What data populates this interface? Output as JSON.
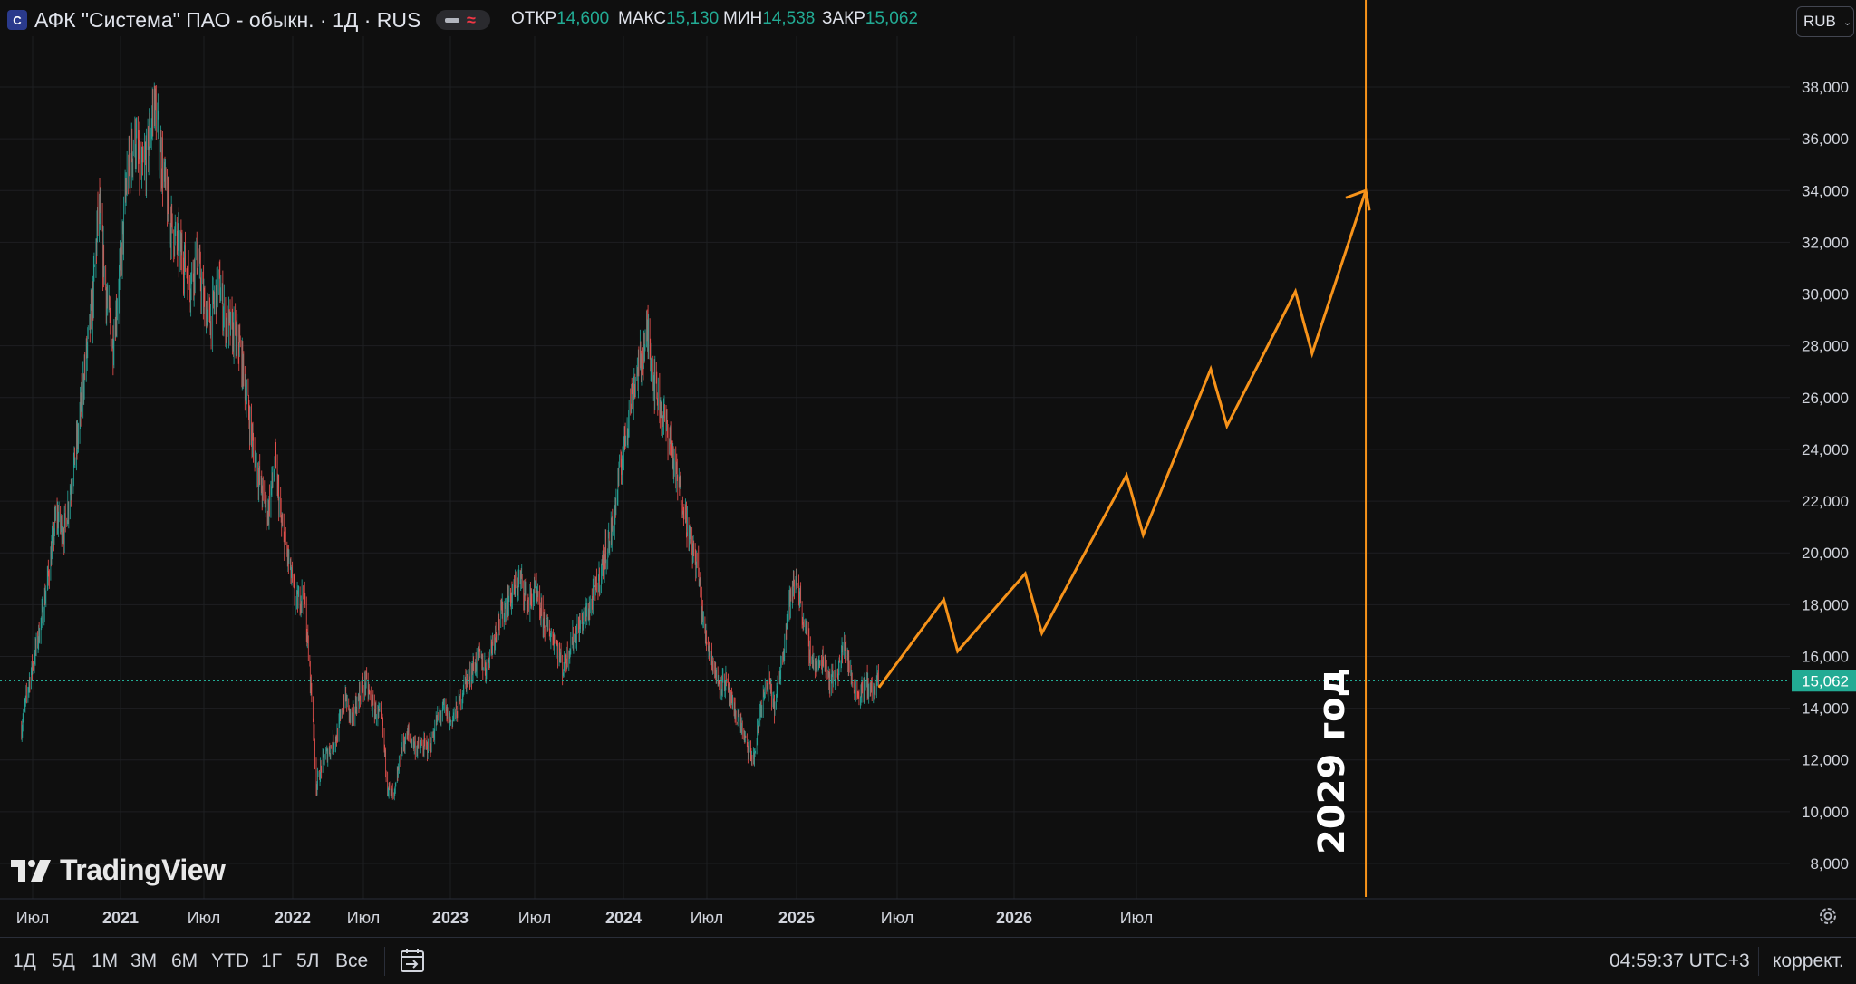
{
  "header": {
    "title": "АФК \"Система\" ПАО - обыкн. · 1Д · RUS",
    "ohlc": [
      {
        "key": "ОТКР",
        "value": "14,600"
      },
      {
        "key": "МАКС",
        "value": "15,130"
      },
      {
        "key": "МИН",
        "value": "14,538"
      },
      {
        "key": "ЗАКР",
        "value": "15,062"
      }
    ],
    "currency": "RUB"
  },
  "chart_data": {
    "type": "line",
    "price_axis_ticks": [
      "38,000",
      "36,000",
      "34,000",
      "32,000",
      "30,000",
      "28,000",
      "26,000",
      "24,000",
      "22,000",
      "20,000",
      "18,000",
      "16,000",
      "14,000",
      "12,000",
      "10,000",
      "8,000"
    ],
    "time_axis_labels": [
      "Июл",
      "2021",
      "Июл",
      "2022",
      "Июл",
      "2023",
      "Июл",
      "2024",
      "Июл",
      "2025",
      "Июл",
      "2026",
      "Июл"
    ],
    "ylim": [
      7000,
      41400
    ],
    "current_price": "15,062",
    "colors": {
      "up": "#26a69a",
      "down": "#ef5350",
      "projection": "#f7931a",
      "price_line": "#22ab94"
    },
    "price_history": {
      "name": "",
      "points": [
        [
          "2020-06-01",
          13.2
        ],
        [
          "2020-06-15",
          14.8
        ],
        [
          "2020-07-01",
          16.2
        ],
        [
          "2020-07-15",
          17.5
        ],
        [
          "2020-08-01",
          19.5
        ],
        [
          "2020-08-15",
          21.5
        ],
        [
          "2020-09-01",
          20.8
        ],
        [
          "2020-09-15",
          22.5
        ],
        [
          "2020-10-01",
          24.5
        ],
        [
          "2020-10-15",
          27.0
        ],
        [
          "2020-11-01",
          29.5
        ],
        [
          "2020-11-15",
          33.5
        ],
        [
          "2020-12-01",
          30.0
        ],
        [
          "2020-12-15",
          28.0
        ],
        [
          "2021-01-01",
          31.0
        ],
        [
          "2021-01-15",
          34.5
        ],
        [
          "2021-02-01",
          36.0
        ],
        [
          "2021-02-15",
          34.5
        ],
        [
          "2021-03-01",
          35.5
        ],
        [
          "2021-03-15",
          37.5
        ],
        [
          "2021-04-01",
          35.0
        ],
        [
          "2021-04-15",
          33.0
        ],
        [
          "2021-05-01",
          32.0
        ],
        [
          "2021-05-15",
          31.5
        ],
        [
          "2021-06-01",
          30.5
        ],
        [
          "2021-06-15",
          31.5
        ],
        [
          "2021-07-01",
          29.5
        ],
        [
          "2021-07-15",
          29.0
        ],
        [
          "2021-08-01",
          30.5
        ],
        [
          "2021-08-15",
          29.0
        ],
        [
          "2021-09-01",
          28.5
        ],
        [
          "2021-09-15",
          28.0
        ],
        [
          "2021-10-01",
          26.0
        ],
        [
          "2021-10-15",
          24.0
        ],
        [
          "2021-11-01",
          22.5
        ],
        [
          "2021-11-15",
          21.5
        ],
        [
          "2021-12-01",
          23.5
        ],
        [
          "2021-12-15",
          21.0
        ],
        [
          "2022-01-01",
          19.5
        ],
        [
          "2022-01-15",
          18.0
        ],
        [
          "2022-02-01",
          18.5
        ],
        [
          "2022-02-20",
          14.0
        ],
        [
          "2022-02-28",
          11.0
        ],
        [
          "2022-03-15",
          12.0
        ],
        [
          "2022-04-01",
          12.5
        ],
        [
          "2022-04-15",
          13.0
        ],
        [
          "2022-05-01",
          14.5
        ],
        [
          "2022-05-15",
          13.5
        ],
        [
          "2022-06-01",
          14.5
        ],
        [
          "2022-06-15",
          15.0
        ],
        [
          "2022-07-01",
          14.0
        ],
        [
          "2022-07-20",
          13.5
        ],
        [
          "2022-08-01",
          11.0
        ],
        [
          "2022-08-15",
          10.5
        ],
        [
          "2022-09-01",
          12.5
        ],
        [
          "2022-09-15",
          13.0
        ],
        [
          "2022-10-01",
          12.5
        ],
        [
          "2022-10-15",
          12.5
        ],
        [
          "2022-11-01",
          12.5
        ],
        [
          "2022-11-15",
          13.5
        ],
        [
          "2022-12-01",
          14.0
        ],
        [
          "2022-12-15",
          13.5
        ],
        [
          "2023-01-01",
          14.0
        ],
        [
          "2023-01-15",
          15.0
        ],
        [
          "2023-02-01",
          15.5
        ],
        [
          "2023-02-15",
          16.0
        ],
        [
          "2023-03-01",
          15.5
        ],
        [
          "2023-03-15",
          16.5
        ],
        [
          "2023-04-01",
          17.5
        ],
        [
          "2023-04-15",
          18.0
        ],
        [
          "2023-05-01",
          18.5
        ],
        [
          "2023-05-15",
          19.0
        ],
        [
          "2023-06-01",
          18.0
        ],
        [
          "2023-06-15",
          18.5
        ],
        [
          "2023-07-01",
          17.5
        ],
        [
          "2023-07-15",
          17.0
        ],
        [
          "2023-08-01",
          16.5
        ],
        [
          "2023-08-15",
          15.5
        ],
        [
          "2023-09-01",
          16.5
        ],
        [
          "2023-09-15",
          17.0
        ],
        [
          "2023-10-01",
          17.5
        ],
        [
          "2023-10-15",
          18.0
        ],
        [
          "2023-11-01",
          19.0
        ],
        [
          "2023-11-15",
          20.0
        ],
        [
          "2023-12-01",
          21.0
        ],
        [
          "2023-12-15",
          23.0
        ],
        [
          "2024-01-01",
          25.0
        ],
        [
          "2024-01-15",
          26.5
        ],
        [
          "2024-02-01",
          27.5
        ],
        [
          "2024-02-15",
          28.5
        ],
        [
          "2024-03-01",
          26.5
        ],
        [
          "2024-03-15",
          25.5
        ],
        [
          "2024-04-01",
          24.5
        ],
        [
          "2024-04-15",
          23.0
        ],
        [
          "2024-05-01",
          22.0
        ],
        [
          "2024-05-15",
          20.5
        ],
        [
          "2024-06-01",
          19.5
        ],
        [
          "2024-06-15",
          17.0
        ],
        [
          "2024-07-01",
          16.0
        ],
        [
          "2024-07-15",
          15.0
        ],
        [
          "2024-08-01",
          15.0
        ],
        [
          "2024-08-15",
          14.0
        ],
        [
          "2024-09-01",
          13.5
        ],
        [
          "2024-09-15",
          12.5
        ],
        [
          "2024-10-01",
          12.0
        ],
        [
          "2024-10-15",
          14.0
        ],
        [
          "2024-11-01",
          15.0
        ],
        [
          "2024-11-15",
          14.0
        ],
        [
          "2024-12-01",
          16.0
        ],
        [
          "2024-12-15",
          18.0
        ],
        [
          "2025-01-01",
          19.0
        ],
        [
          "2025-01-15",
          17.5
        ],
        [
          "2025-02-01",
          16.0
        ],
        [
          "2025-02-15",
          15.5
        ],
        [
          "2025-03-01",
          16.0
        ],
        [
          "2025-03-15",
          15.0
        ],
        [
          "2025-04-01",
          15.5
        ],
        [
          "2025-04-15",
          16.5
        ],
        [
          "2025-05-01",
          15.0
        ],
        [
          "2025-05-15",
          14.5
        ],
        [
          "2025-06-01",
          15.0
        ],
        [
          "2025-06-15",
          14.6
        ],
        [
          "2025-06-28",
          15.1
        ]
      ]
    },
    "projection": {
      "name": "",
      "points": [
        [
          "2025-06-28",
          14.8
        ],
        [
          "2025-11-15",
          18.2
        ],
        [
          "2025-12-15",
          16.2
        ],
        [
          "2026-05-10",
          19.2
        ],
        [
          "2026-06-15",
          16.9
        ],
        [
          "2026-12-15",
          23.0
        ],
        [
          "2027-01-20",
          20.7
        ],
        [
          "2027-06-15",
          27.1
        ],
        [
          "2027-07-20",
          24.9
        ],
        [
          "2027-12-15",
          30.1
        ],
        [
          "2028-01-20",
          27.7
        ],
        [
          "2028-05-15",
          34.0
        ]
      ]
    },
    "vertical_marker": {
      "date": "2028-05-15",
      "label": "2029 год"
    }
  },
  "watermark": "TradingView",
  "bottom": {
    "ranges": [
      "1Д",
      "5Д",
      "1М",
      "3М",
      "6М",
      "YTD",
      "1Г",
      "5Л",
      "Все"
    ],
    "time": "04:59:37 UTC+3",
    "adjust": "коррект."
  }
}
